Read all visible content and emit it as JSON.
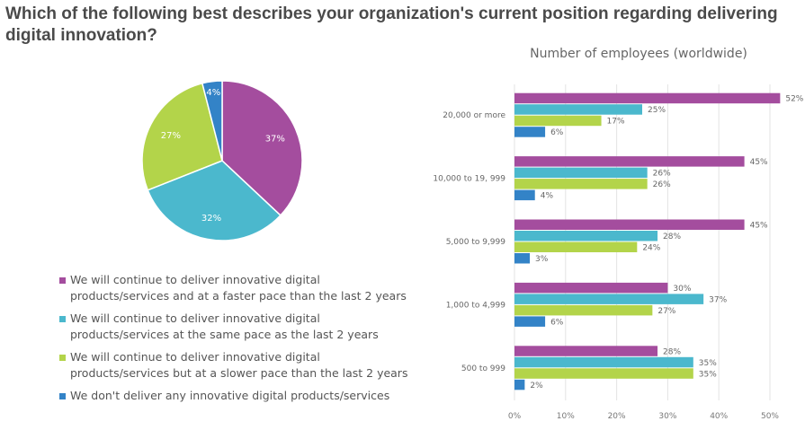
{
  "question": "Which of the following best describes your organization's current position regarding delivering digital innovation?",
  "colors": {
    "faster": "#a44d9e",
    "same": "#4bb8cd",
    "slower": "#b3d44a",
    "none": "#3383c7"
  },
  "chart_data": [
    {
      "type": "pie",
      "slices": [
        {
          "key": "faster",
          "label": "We will continue to deliver innovative digital products/services and at a faster pace than the last 2 years",
          "value": 37,
          "value_label": "37%"
        },
        {
          "key": "same",
          "label": "We will continue to deliver innovative digital products/services at the same pace as the last 2 years",
          "value": 32,
          "value_label": "32%"
        },
        {
          "key": "slower",
          "label": "We will continue to deliver innovative digital products/services but at a slower pace than the last 2 years",
          "value": 27,
          "value_label": "27%"
        },
        {
          "key": "none",
          "label": "We don't deliver any innovative digital products/services",
          "value": 4,
          "value_label": "4%"
        }
      ],
      "legend_position": "bottom"
    },
    {
      "type": "bar",
      "orientation": "horizontal",
      "title": "Number of employees (worldwide)",
      "categories": [
        "20,000 or more",
        "10,000 to 19, 999",
        "5,000 to 9,999",
        "1,000 to 4,999",
        "500 to 999"
      ],
      "series": [
        {
          "key": "faster",
          "values": [
            52,
            45,
            45,
            30,
            28
          ]
        },
        {
          "key": "same",
          "values": [
            25,
            26,
            28,
            37,
            35
          ]
        },
        {
          "key": "slower",
          "values": [
            17,
            26,
            24,
            27,
            35
          ]
        },
        {
          "key": "none",
          "values": [
            6,
            4,
            3,
            6,
            2
          ]
        }
      ],
      "xlim": [
        0,
        50
      ],
      "xticks": [
        0,
        10,
        20,
        30,
        40,
        50
      ],
      "xtick_labels": [
        "0%",
        "10%",
        "20%",
        "30%",
        "40%",
        "50%"
      ],
      "grid": true
    }
  ]
}
